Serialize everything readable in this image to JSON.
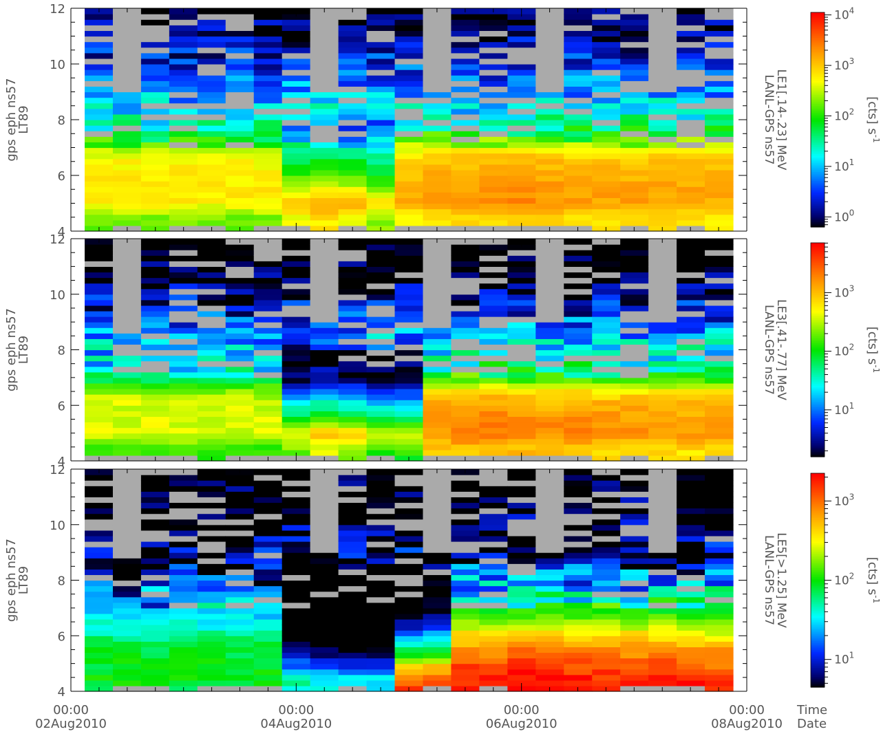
{
  "chart_data": {
    "type": "heatmap",
    "x_axis": {
      "range": [
        "2010-08-02T00:00",
        "2010-08-08T00:00"
      ],
      "ticks": [
        {
          "time": "00:00",
          "date": "02Aug2010"
        },
        {
          "time": "00:00",
          "date": "04Aug2010"
        },
        {
          "time": "00:00",
          "date": "06Aug2010"
        },
        {
          "time": "00:00",
          "date": "08Aug2010"
        }
      ],
      "row_labels": {
        "time": "Time",
        "date": "Date"
      }
    },
    "y_axis": {
      "range": [
        4,
        12
      ],
      "ticks": [
        "4",
        "6",
        "8",
        "10",
        "12"
      ],
      "label_line1": "gps eph ns57",
      "label_line2": "LT89"
    },
    "columns": 23,
    "l_bins": [
      4.1,
      4.3,
      4.5,
      4.7,
      4.9,
      5.1,
      5.3,
      5.5,
      5.7,
      5.9,
      6.1,
      6.3,
      6.5,
      6.7,
      6.9,
      7.1,
      7.3,
      7.5,
      7.7,
      7.9,
      8.1,
      8.3,
      8.5,
      8.7,
      8.9,
      9.1,
      9.3,
      9.5,
      9.7,
      9.9,
      10.1,
      10.3,
      10.5,
      10.7,
      10.9,
      11.1,
      11.3,
      11.5,
      11.7,
      11.9
    ],
    "colors": {
      "no_data": "#aaaaaa",
      "palette": "rainbow (black-blue-cyan-green-yellow-red)"
    },
    "panels": [
      {
        "name": "LE1",
        "label_line1": "LANL-GPS ns57",
        "label_line2": "LE1[.14-.23] MeV",
        "units": "[cts] s",
        "units_sup": "-1",
        "log_range": [
          -0.2,
          4.05
        ],
        "colorbar_ticks": [
          {
            "base": "10",
            "exp": "0",
            "value": 0
          },
          {
            "base": "10",
            "exp": "1",
            "value": 1
          },
          {
            "base": "10",
            "exp": "2",
            "value": 2
          },
          {
            "base": "10",
            "exp": "3",
            "value": 3
          },
          {
            "base": "10",
            "exp": "4",
            "value": 4
          }
        ],
        "profile": [
          [
            0.0,
            2.2
          ],
          [
            0.5,
            2.3
          ],
          [
            1.0,
            2.75
          ],
          [
            1.6,
            2.8
          ],
          [
            2.2,
            2.75
          ],
          [
            2.6,
            2.7
          ],
          [
            3.0,
            2.4
          ],
          [
            3.4,
            1.75
          ],
          [
            3.8,
            1.4
          ],
          [
            4.4,
            1.1
          ],
          [
            5.0,
            0.9
          ],
          [
            5.6,
            0.6
          ],
          [
            6.2,
            0.4
          ],
          [
            6.8,
            0.2
          ],
          [
            7.4,
            0.0
          ],
          [
            7.9,
            -0.1
          ]
        ],
        "column_offsets": [
          0,
          0,
          0,
          0,
          0,
          0,
          0,
          0.4,
          0.6,
          0.5,
          0.1,
          0.5,
          0.6,
          0.65,
          0.7,
          0.75,
          0.7,
          0.65,
          0.6,
          0.6,
          0.6,
          0.6,
          0.55
        ],
        "dip": {
          "start": 7,
          "end": 10,
          "L_from": 5.0,
          "L_to": 8.5,
          "amount": 1.2
        },
        "inner_gap_bins": 0
      },
      {
        "name": "LE3",
        "label_line1": "LANL-GPS ns57",
        "label_line2": "LE3[.41-.77] MeV",
        "units": "[cts] s",
        "units_sup": "-1",
        "log_range": [
          0.2,
          3.85
        ],
        "colorbar_ticks": [
          {
            "base": "10",
            "exp": "1",
            "value": 1
          },
          {
            "base": "10",
            "exp": "2",
            "value": 2
          },
          {
            "base": "10",
            "exp": "3",
            "value": 3
          }
        ],
        "profile": [
          [
            0.0,
            2.0
          ],
          [
            0.5,
            2.2
          ],
          [
            1.0,
            2.6
          ],
          [
            1.6,
            2.6
          ],
          [
            2.2,
            2.55
          ],
          [
            2.6,
            2.3
          ],
          [
            3.0,
            1.7
          ],
          [
            3.4,
            1.4
          ],
          [
            3.8,
            1.3
          ],
          [
            4.4,
            1.2
          ],
          [
            5.0,
            0.9
          ],
          [
            5.6,
            0.6
          ],
          [
            6.2,
            0.4
          ],
          [
            6.8,
            0.2
          ],
          [
            7.4,
            0.0
          ],
          [
            7.9,
            -0.1
          ]
        ],
        "column_offsets": [
          0,
          0,
          0,
          0,
          0,
          0,
          0,
          0.2,
          0.5,
          0.3,
          0.0,
          0.0,
          0.8,
          0.9,
          0.95,
          0.9,
          0.85,
          0.85,
          0.8,
          0.8,
          0.8,
          0.75,
          0.75
        ],
        "dip": {
          "start": 7,
          "end": 11,
          "L_from": 5.0,
          "L_to": 8.5,
          "amount": 1.6
        },
        "inner_gap_bins": 0
      },
      {
        "name": "LE5",
        "label_line1": "LANL-GPS ns57",
        "label_line2": "LE5[>1.25] MeV",
        "units": "[cts] s",
        "units_sup": "-1",
        "log_range": [
          0.65,
          3.35
        ],
        "colorbar_ticks": [
          {
            "base": "10",
            "exp": "1",
            "value": 1
          },
          {
            "base": "10",
            "exp": "2",
            "value": 2
          },
          {
            "base": "10",
            "exp": "3",
            "value": 3
          }
        ],
        "profile": [
          [
            0.0,
            1.9
          ],
          [
            0.5,
            2.0
          ],
          [
            1.0,
            1.95
          ],
          [
            1.5,
            1.9
          ],
          [
            2.0,
            1.75
          ],
          [
            2.5,
            1.55
          ],
          [
            3.0,
            1.35
          ],
          [
            3.5,
            1.15
          ],
          [
            4.0,
            1.0
          ],
          [
            4.5,
            0.9
          ],
          [
            5.0,
            0.8
          ],
          [
            5.6,
            0.7
          ],
          [
            6.4,
            0.6
          ],
          [
            7.2,
            0.5
          ],
          [
            7.9,
            0.4
          ]
        ],
        "column_offsets": [
          0,
          0,
          0,
          0,
          0,
          0,
          0,
          -0.3,
          -0.4,
          -0.5,
          -0.5,
          1.2,
          1.35,
          1.4,
          1.4,
          1.5,
          1.45,
          1.4,
          1.35,
          1.4,
          1.45,
          1.4,
          1.3
        ],
        "dip": {
          "start": 7,
          "end": 12,
          "L_from": 4.4,
          "L_to": 9.0,
          "amount": 1.3
        },
        "inner_gap_bins": 0
      }
    ]
  }
}
